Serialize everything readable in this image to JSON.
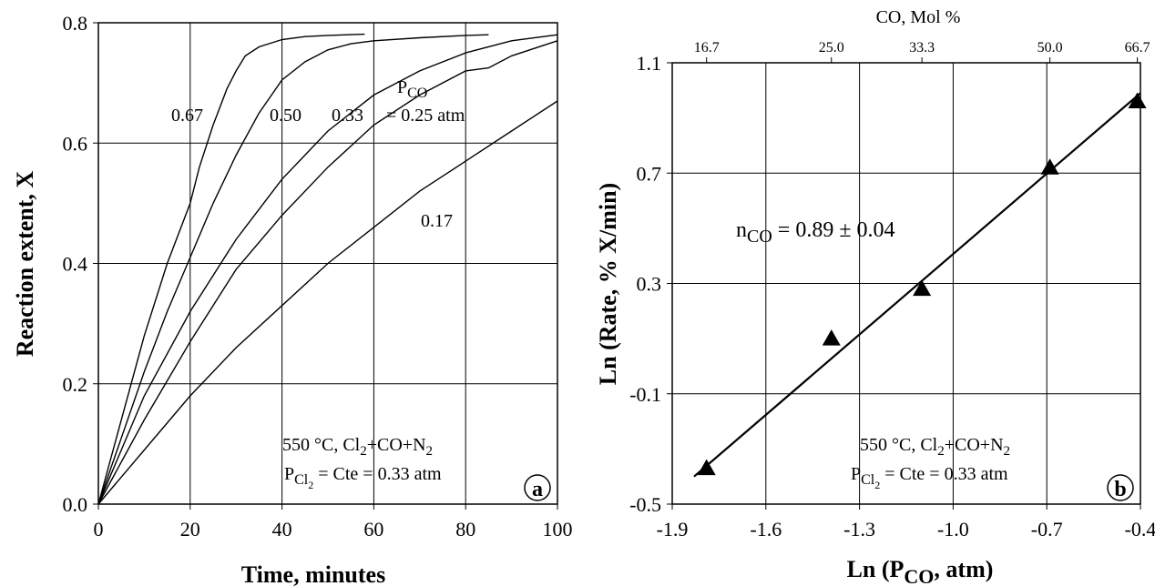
{
  "chart_data": [
    {
      "type": "line",
      "panel_label": "a",
      "xlabel": "Time, minutes",
      "ylabel": "Reaction extent, X",
      "xlim": [
        0,
        100
      ],
      "ylim": [
        0,
        0.8
      ],
      "x_ticks": [
        "0",
        "20",
        "40",
        "60",
        "80",
        "100"
      ],
      "y_ticks": [
        "0.0",
        "0.2",
        "0.4",
        "0.6",
        "0.8"
      ],
      "grid": true,
      "legend_title": "PCO",
      "legend_title_parts": {
        "base": "P",
        "sub": "CO"
      },
      "series": [
        {
          "name": "0.67",
          "x": [
            0,
            5,
            10,
            15,
            20,
            22,
            25,
            28,
            30,
            32,
            35,
            40,
            45,
            50,
            58
          ],
          "y": [
            0,
            0.14,
            0.28,
            0.4,
            0.5,
            0.56,
            0.63,
            0.69,
            0.72,
            0.745,
            0.76,
            0.772,
            0.777,
            0.779,
            0.781
          ]
        },
        {
          "name": "0.50",
          "x": [
            0,
            5,
            10,
            15,
            20,
            25,
            30,
            35,
            40,
            45,
            50,
            55,
            60,
            70,
            80,
            85
          ],
          "y": [
            0,
            0.11,
            0.22,
            0.32,
            0.41,
            0.5,
            0.58,
            0.65,
            0.705,
            0.735,
            0.755,
            0.765,
            0.77,
            0.775,
            0.779,
            0.78
          ]
        },
        {
          "name": "0.33",
          "x": [
            0,
            10,
            20,
            30,
            40,
            45,
            50,
            55,
            60,
            70,
            80,
            90,
            100
          ],
          "y": [
            0,
            0.18,
            0.32,
            0.44,
            0.54,
            0.58,
            0.62,
            0.65,
            0.68,
            0.72,
            0.75,
            0.77,
            0.78
          ]
        },
        {
          "name": "0.25 atm",
          "x": [
            0,
            10,
            20,
            30,
            40,
            50,
            60,
            70,
            80,
            85,
            90,
            100
          ],
          "y": [
            0,
            0.14,
            0.27,
            0.39,
            0.48,
            0.56,
            0.63,
            0.68,
            0.72,
            0.725,
            0.745,
            0.77
          ]
        },
        {
          "name": "0.17",
          "x": [
            0,
            10,
            20,
            30,
            40,
            50,
            60,
            70,
            80,
            90,
            100
          ],
          "y": [
            0,
            0.09,
            0.18,
            0.26,
            0.33,
            0.4,
            0.46,
            0.52,
            0.57,
            0.62,
            0.67
          ]
        }
      ],
      "curve_labels": [
        "0.67",
        "0.50",
        "0.33",
        "= 0.25 atm",
        "0.17"
      ],
      "condition_line1": {
        "prefix": "550 °C, Cl",
        "sub": "2",
        "suffix": "+CO+N",
        "sub2": "2"
      },
      "condition_line2": {
        "prefix": "P",
        "sub": "Cl",
        "subsub": "2",
        "suffix": " = Cte = 0.33 atm"
      }
    },
    {
      "type": "scatter",
      "panel_label": "b",
      "xlabel_parts": {
        "prefix": "Ln (P",
        "sub": "CO",
        "suffix": ", atm)"
      },
      "ylabel": "Ln (Rate, % X/min)",
      "top_axis_label": "CO, Mol %",
      "top_ticks": [
        {
          "label": "16.7",
          "x": -1.79
        },
        {
          "label": "25.0",
          "x": -1.39
        },
        {
          "label": "33.3",
          "x": -1.1
        },
        {
          "label": "50.0",
          "x": -0.69
        },
        {
          "label": "66.7",
          "x": -0.41
        }
      ],
      "xlim": [
        -1.9,
        -0.4
      ],
      "ylim": [
        -0.5,
        1.1
      ],
      "x_ticks": [
        "-1.9",
        "-1.6",
        "-1.3",
        "-1.0",
        "-0.7",
        "-0.4"
      ],
      "y_ticks": [
        "-0.5",
        "-0.1",
        "0.3",
        "0.7",
        "1.1"
      ],
      "grid": true,
      "points": {
        "x": [
          -1.79,
          -1.39,
          -1.1,
          -0.69,
          -0.41
        ],
        "y": [
          -0.37,
          0.1,
          0.28,
          0.72,
          0.96
        ]
      },
      "fit_line": {
        "x": [
          -1.83,
          -0.4
        ],
        "y": [
          -0.4,
          0.99
        ]
      },
      "fit_label": {
        "prefix": "n",
        "sub": "CO",
        "suffix": " = 0.89 ± 0.04"
      },
      "condition_line1": {
        "prefix": "550 °C, Cl",
        "sub": "2",
        "suffix": "+CO+N",
        "sub2": "2"
      },
      "condition_line2": {
        "prefix": "P",
        "sub": "Cl",
        "subsub": "2",
        "suffix": " = Cte = 0.33 atm"
      }
    }
  ]
}
